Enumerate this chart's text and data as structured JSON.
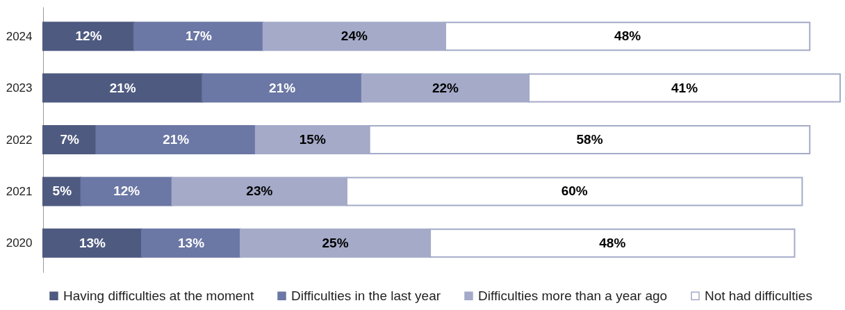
{
  "chart_data": {
    "type": "bar",
    "orientation": "horizontal",
    "stacked": true,
    "tick_labels": "y",
    "legend": "bottom",
    "grid": false,
    "categories": [
      "2024",
      "2023",
      "2022",
      "2021",
      "2020"
    ],
    "series": [
      {
        "name": "Having difficulties at the moment",
        "color": "#4e5a80",
        "values": [
          12,
          21,
          7,
          5,
          13
        ],
        "value_labels": [
          "12%",
          "21%",
          "7%",
          "5%",
          "13%"
        ]
      },
      {
        "name": "Difficulties in the last year",
        "color": "#6b77a4",
        "values": [
          17,
          21,
          21,
          12,
          13
        ],
        "value_labels": [
          "17%",
          "21%",
          "21%",
          "12%",
          "13%"
        ]
      },
      {
        "name": "Difficulties more than a year ago",
        "color": "#a4aac8",
        "values": [
          24,
          22,
          15,
          23,
          25
        ],
        "value_labels": [
          "24%",
          "22%",
          "15%",
          "23%",
          "25%"
        ]
      },
      {
        "name": "Not had difficulties",
        "color": "#ffffff",
        "values": [
          48,
          41,
          58,
          60,
          48
        ],
        "value_labels": [
          "48%",
          "41%",
          "58%",
          "60%",
          "48%"
        ]
      }
    ]
  }
}
